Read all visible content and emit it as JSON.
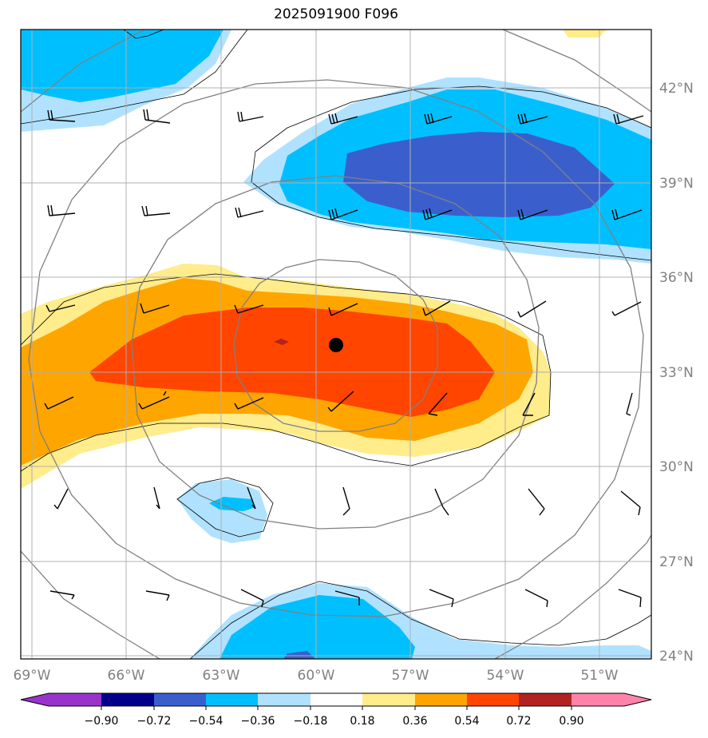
{
  "title": "2025091900 F096",
  "lon_labels": [
    "69°W",
    "66°W",
    "63°W",
    "60°W",
    "57°W",
    "54°W",
    "51°W"
  ],
  "lat_labels": [
    "42°N",
    "39°N",
    "36°N",
    "33°N",
    "30°N",
    "27°N",
    "24°N"
  ],
  "colorbar": {
    "ticks": [
      "−0.90",
      "−0.72",
      "−0.54",
      "−0.36",
      "−0.18",
      "0.18",
      "0.36",
      "0.54",
      "0.72",
      "0.90"
    ],
    "colors": [
      "#9933cc",
      "#00008b",
      "#3a5fcd",
      "#00bfff",
      "#b0e2ff",
      "#ffffff",
      "#ffec8b",
      "#ffa500",
      "#ff4500",
      "#b22222",
      "#ff82ab"
    ]
  },
  "fill_colors": {
    "neg_light": "#b0e2ff",
    "neg_mid": "#00bfff",
    "neg_dark": "#3a5fcd",
    "neg_deepest": "#00008b",
    "pos_light": "#ffec8b",
    "pos_mid": "#ffa500",
    "pos_strong": "#ff4500",
    "pos_max": "#b22222"
  },
  "storm_center": {
    "lon": -58.8,
    "lat": 33.8
  }
}
